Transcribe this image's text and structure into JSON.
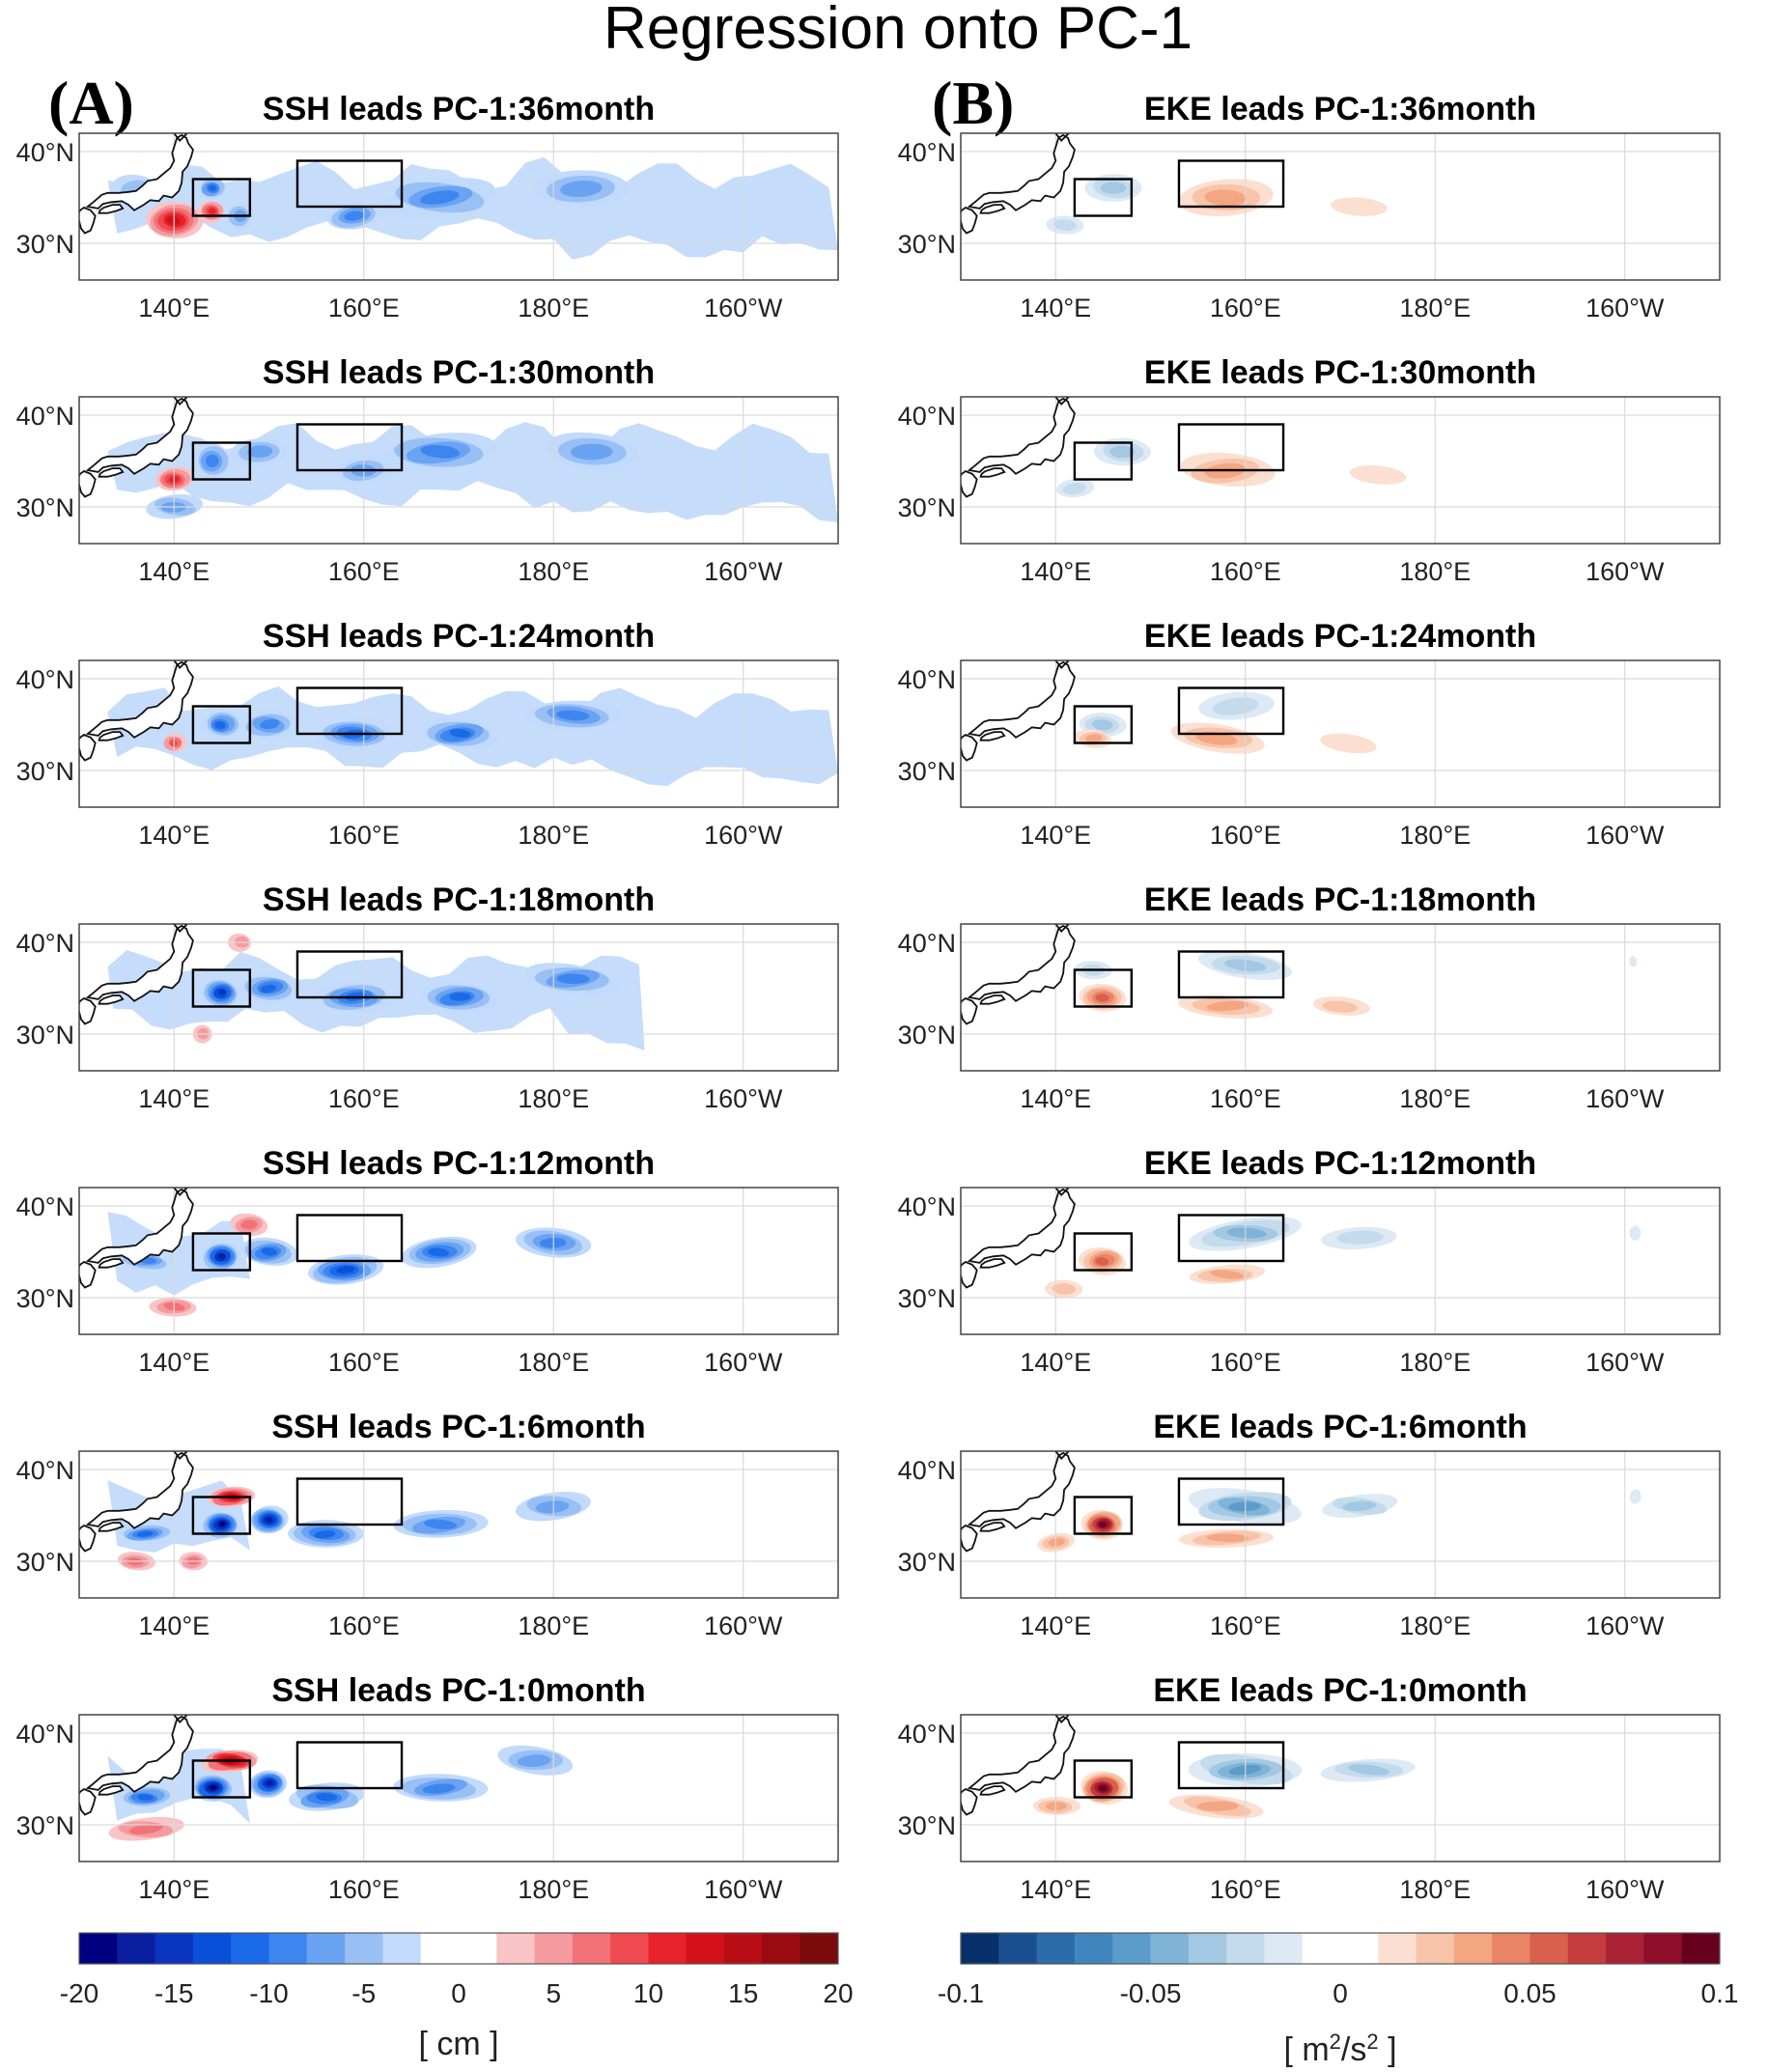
{
  "figure": {
    "title": "Regression onto PC-1",
    "panel_labels": [
      "(A)",
      "(B)"
    ],
    "colors": {
      "ssh_neg": [
        "#000080",
        "#0a1fa0",
        "#0a35c0",
        "#0a4fd8",
        "#1a6ae8",
        "#3d86f0",
        "#6aa3f2",
        "#99c0f5",
        "#c2dafb"
      ],
      "ssh_pos": [
        "#f9c4c6",
        "#f59ba0",
        "#f17378",
        "#ee4a50",
        "#e8222a",
        "#d3101a",
        "#b80d14",
        "#9a0a10",
        "#7a0a0c"
      ],
      "eke_neg": [
        "#08306b",
        "#1a4f8f",
        "#2b6ca8",
        "#3f86be",
        "#5b9ccb",
        "#7fb3d7",
        "#a3c8e3",
        "#c3dbec",
        "#dde9f4"
      ],
      "eke_pos": [
        "#fbe0d2",
        "#f8c4a9",
        "#f4a582",
        "#e98466",
        "#d9604d",
        "#c43c3c",
        "#ab2234",
        "#8e0f2c",
        "#67001f"
      ],
      "box": "#000000",
      "coast": "#111111"
    }
  },
  "chart_data": [
    {
      "type": "heatmap",
      "variable": "SSH",
      "titles": [
        "SSH leads PC-1:36month",
        "SSH leads PC-1:30month",
        "SSH leads PC-1:24month",
        "SSH leads PC-1:18month",
        "SSH leads PC-1:12month",
        "SSH leads PC-1:6month",
        "SSH leads PC-1:0month"
      ],
      "lags_months": [
        36,
        30,
        24,
        18,
        12,
        6,
        0
      ],
      "x_ticks": [
        "140°E",
        "160°E",
        "180°E",
        "160°W"
      ],
      "x_tick_values": [
        140,
        160,
        180,
        200
      ],
      "y_ticks": [
        "40°N",
        "30°N"
      ],
      "y_tick_values": [
        40,
        30
      ],
      "xlim": [
        130,
        210
      ],
      "ylim": [
        26,
        42
      ],
      "grid": true,
      "boxes": [
        {
          "lon": [
            142,
            148
          ],
          "lat": [
            33,
            37
          ]
        },
        {
          "lon": [
            153,
            164
          ],
          "lat": [
            34,
            39
          ]
        }
      ],
      "colorbar": {
        "ticks": [
          "-20",
          "-15",
          "-10",
          "-5",
          "0",
          "5",
          "10",
          "15",
          "20"
        ],
        "range": [
          -20,
          20
        ],
        "levels": 20,
        "label": "[ cm ]"
      },
      "patterns": [
        {
          "band": 0.25,
          "blobs": [
            [
              140,
              32.5,
              3,
              2,
              0.7
            ],
            [
              144,
              33.5,
              1.4,
              1.2,
              0.6
            ],
            [
              144,
              36,
              1.5,
              1.2,
              -0.55
            ],
            [
              136,
              36,
              2.5,
              1.5,
              -0.2
            ],
            [
              168,
              35,
              6,
              2,
              -0.45
            ],
            [
              183,
              36,
              5,
              2,
              -0.35
            ],
            [
              159,
              33,
              3,
              1.5,
              -0.4
            ],
            [
              147,
              33,
              1.5,
              1.5,
              -0.35
            ]
          ]
        },
        {
          "band": 0.28,
          "blobs": [
            [
              140,
              33,
              2,
              1.3,
              0.6
            ],
            [
              144,
              35,
              2,
              2,
              -0.45
            ],
            [
              149,
              36,
              3,
              1.5,
              -0.3
            ],
            [
              168,
              36,
              6,
              2,
              -0.45
            ],
            [
              184,
              36,
              5,
              2,
              -0.35
            ],
            [
              160,
              34,
              3,
              1.5,
              -0.3
            ],
            [
              140,
              30,
              3,
              1.3,
              -0.3
            ]
          ]
        },
        {
          "band": 0.25,
          "blobs": [
            [
              140,
              33,
              1.2,
              1,
              0.45
            ],
            [
              145,
              35,
              2,
              1.5,
              -0.55
            ],
            [
              150,
              35,
              3,
              1.5,
              -0.45
            ],
            [
              159,
              34,
              4,
              1.6,
              -0.55
            ],
            [
              170,
              34,
              4,
              1.6,
              -0.55
            ],
            [
              182,
              36,
              5,
              1.6,
              -0.45
            ]
          ]
        },
        {
          "band": 0.18,
          "blobs": [
            [
              145,
              34.5,
              2,
              1.6,
              -0.75
            ],
            [
              150,
              35,
              3,
              1.5,
              -0.5
            ],
            [
              159,
              34,
              4,
              1.6,
              -0.6
            ],
            [
              170,
              34,
              4,
              1.6,
              -0.55
            ],
            [
              182,
              36,
              5,
              1.6,
              -0.45
            ],
            [
              147,
              40,
              1.2,
              1,
              0.25
            ],
            [
              143,
              30,
              1,
              1,
              0.25
            ]
          ]
        },
        {
          "band": 0.05,
          "blobs": [
            [
              145,
              34.5,
              2,
              1.6,
              -0.9
            ],
            [
              150,
              35,
              3,
              1.5,
              -0.6
            ],
            [
              158,
              33,
              4,
              1.6,
              -0.65
            ],
            [
              168,
              35,
              4,
              1.6,
              -0.55
            ],
            [
              180,
              36,
              4,
              1.6,
              -0.4
            ],
            [
              148,
              38,
              2,
              1.2,
              0.35
            ],
            [
              140,
              29,
              2.5,
              1,
              0.3
            ],
            [
              137,
              34,
              3,
              1,
              -0.4
            ]
          ]
        },
        {
          "band": 0.05,
          "blobs": [
            [
              145,
              34,
              2,
              1.5,
              -1.0
            ],
            [
              150,
              34.5,
              2,
              1.5,
              -0.85
            ],
            [
              146,
              37,
              2.5,
              1.1,
              0.8
            ],
            [
              156,
              33,
              4,
              1.5,
              -0.6
            ],
            [
              168,
              34,
              5,
              1.5,
              -0.45
            ],
            [
              180,
              36,
              4,
              1.5,
              -0.35
            ],
            [
              137,
              33,
              3,
              1,
              -0.55
            ],
            [
              136,
              30,
              2,
              1,
              0.3
            ],
            [
              142,
              30,
              1.5,
              1,
              0.3
            ]
          ]
        },
        {
          "band": 0.05,
          "blobs": [
            [
              144,
              34,
              2.2,
              1.5,
              -1.0
            ],
            [
              150,
              34.5,
              2,
              1.5,
              -0.85
            ],
            [
              146,
              37,
              3,
              1.2,
              0.85
            ],
            [
              156,
              33,
              4,
              1.5,
              -0.6
            ],
            [
              168,
              34,
              5,
              1.5,
              -0.45
            ],
            [
              178,
              37,
              4,
              1.5,
              -0.35
            ],
            [
              137,
              33,
              3,
              1.2,
              -0.6
            ],
            [
              137,
              29.5,
              4,
              1.2,
              0.35
            ]
          ]
        }
      ]
    },
    {
      "type": "heatmap",
      "variable": "EKE",
      "titles": [
        "EKE leads PC-1:36month",
        "EKE leads PC-1:30month",
        "EKE leads PC-1:24month",
        "EKE leads PC-1:18month",
        "EKE leads PC-1:12month",
        "EKE leads PC-1:6month",
        "EKE leads PC-1:0month"
      ],
      "lags_months": [
        36,
        30,
        24,
        18,
        12,
        6,
        0
      ],
      "x_ticks": [
        "140°E",
        "160°E",
        "180°E",
        "160°W"
      ],
      "x_tick_values": [
        140,
        160,
        180,
        200
      ],
      "y_ticks": [
        "40°N",
        "30°N"
      ],
      "y_tick_values": [
        40,
        30
      ],
      "xlim": [
        130,
        210
      ],
      "ylim": [
        26,
        42
      ],
      "grid": true,
      "boxes": [
        {
          "lon": [
            142,
            148
          ],
          "lat": [
            33,
            37
          ]
        },
        {
          "lon": [
            153,
            164
          ],
          "lat": [
            34,
            39
          ]
        }
      ],
      "colorbar": {
        "ticks": [
          "-0.1",
          "-0.05",
          "0",
          "0.05",
          "0.1"
        ],
        "range": [
          -0.1,
          0.1
        ],
        "levels": 20,
        "label_main": "[ m",
        "label_sup1": "2",
        "label_mid": "/s",
        "label_sup2": "2",
        "label_end": " ]"
      },
      "patterns": [
        {
          "blobs": [
            [
              146,
              36,
              3,
              1.5,
              -0.35
            ],
            [
              141,
              32,
              2,
              1,
              -0.2
            ],
            [
              158,
              35,
              5,
              2,
              0.3
            ],
            [
              172,
              34,
              3,
              1,
              0.15
            ]
          ]
        },
        {
          "blobs": [
            [
              147,
              36,
              3,
              1.5,
              -0.3
            ],
            [
              142,
              32,
              2,
              1,
              -0.2
            ],
            [
              158,
              34,
              5,
              1.8,
              0.3
            ],
            [
              174,
              33.5,
              3,
              1,
              0.12
            ]
          ]
        },
        {
          "blobs": [
            [
              145,
              35,
              2.5,
              1.3,
              -0.35
            ],
            [
              144,
              33.5,
              2,
              1,
              0.3
            ],
            [
              157,
              33.5,
              5,
              1.5,
              0.35
            ],
            [
              159,
              37,
              4,
              1.5,
              -0.2
            ],
            [
              171,
              33,
              3,
              1,
              0.15
            ]
          ]
        },
        {
          "blobs": [
            [
              145,
              34,
              2.5,
              1.5,
              0.55
            ],
            [
              158,
              33,
              5,
              1.2,
              0.35
            ],
            [
              160,
              37.5,
              5,
              1.4,
              -0.3
            ],
            [
              170,
              33,
              3,
              1,
              0.2
            ],
            [
              144,
              37,
              2,
              1,
              -0.2
            ],
            [
              201,
              38,
              0.4,
              0.6,
              -0.15
            ]
          ]
        },
        {
          "blobs": [
            [
              145,
              34,
              2.5,
              1.5,
              0.6
            ],
            [
              158,
              32.5,
              4,
              1,
              0.3
            ],
            [
              160,
              37,
              6,
              1.6,
              -0.4
            ],
            [
              172,
              36.5,
              4,
              1.2,
              -0.25
            ],
            [
              201,
              37,
              0.6,
              0.8,
              -0.15
            ],
            [
              141,
              31,
              2,
              1,
              0.2
            ]
          ]
        },
        {
          "blobs": [
            [
              145,
              34,
              2.2,
              1.6,
              0.95
            ],
            [
              158,
              32.5,
              5,
              1,
              0.3
            ],
            [
              160,
              36,
              6,
              1.8,
              -0.55
            ],
            [
              172,
              36,
              4,
              1.2,
              -0.3
            ],
            [
              201,
              37,
              0.6,
              0.8,
              -0.15
            ],
            [
              140,
              32,
              2,
              1,
              0.3
            ]
          ]
        },
        {
          "blobs": [
            [
              145,
              34,
              2.5,
              1.8,
              1.0
            ],
            [
              157,
              32,
              5,
              1.2,
              0.35
            ],
            [
              160,
              36,
              6,
              1.8,
              -0.6
            ],
            [
              173,
              36,
              5,
              1.2,
              -0.3
            ],
            [
              140,
              32,
              2.5,
              1,
              0.35
            ]
          ]
        }
      ]
    }
  ]
}
